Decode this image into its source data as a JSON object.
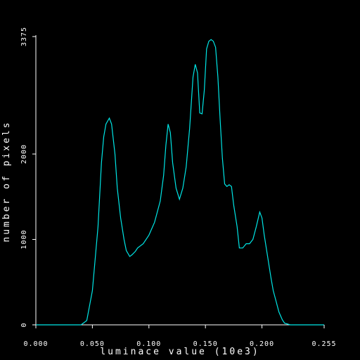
{
  "chart_data": {
    "type": "line",
    "xlabel": "luminace value (10e3)",
    "ylabel": "number of pixels",
    "xlim": [
      0.0,
      0.255
    ],
    "ylim": [
      0,
      3375
    ],
    "x_ticks": [
      "0.000",
      "0.050",
      "0.100",
      "0.150",
      "0.200",
      "0.255"
    ],
    "x_tick_values": [
      0.0,
      0.05,
      0.1,
      0.15,
      0.2,
      0.255
    ],
    "y_ticks": [
      "0",
      "1000",
      "2000",
      "3375"
    ],
    "y_tick_values": [
      0,
      1000,
      2000,
      3375
    ],
    "grid": false,
    "colors": {
      "background": "#000000",
      "axes": "#ffffff",
      "series": "#00e5e5"
    },
    "series": [
      {
        "x": [
          0.0,
          0.04,
          0.045,
          0.05,
          0.055,
          0.058,
          0.06,
          0.062,
          0.065,
          0.067,
          0.07,
          0.072,
          0.075,
          0.078,
          0.08,
          0.083,
          0.085,
          0.088,
          0.09,
          0.095,
          0.1,
          0.105,
          0.11,
          0.113,
          0.115,
          0.117,
          0.119,
          0.121,
          0.124,
          0.127,
          0.13,
          0.133,
          0.136,
          0.139,
          0.141,
          0.143,
          0.145,
          0.147,
          0.149,
          0.151,
          0.153,
          0.155,
          0.157,
          0.159,
          0.161,
          0.163,
          0.165,
          0.167,
          0.169,
          0.171,
          0.173,
          0.175,
          0.178,
          0.18,
          0.183,
          0.186,
          0.189,
          0.192,
          0.195,
          0.198,
          0.2,
          0.202,
          0.205,
          0.208,
          0.21,
          0.212,
          0.215,
          0.218,
          0.22,
          0.225,
          0.23,
          0.235,
          0.255
        ],
        "y": [
          0,
          0,
          50,
          400,
          1150,
          1900,
          2200,
          2350,
          2420,
          2350,
          2000,
          1600,
          1250,
          1000,
          870,
          800,
          820,
          860,
          900,
          950,
          1050,
          1200,
          1450,
          1750,
          2100,
          2350,
          2250,
          1900,
          1600,
          1470,
          1600,
          1850,
          2300,
          2900,
          3050,
          2950,
          2480,
          2470,
          2750,
          3230,
          3320,
          3340,
          3320,
          3250,
          2900,
          2400,
          1950,
          1650,
          1620,
          1640,
          1620,
          1400,
          1150,
          900,
          900,
          950,
          950,
          1000,
          1150,
          1320,
          1250,
          1050,
          800,
          550,
          400,
          300,
          150,
          60,
          20,
          0,
          0,
          0,
          0
        ]
      }
    ]
  }
}
